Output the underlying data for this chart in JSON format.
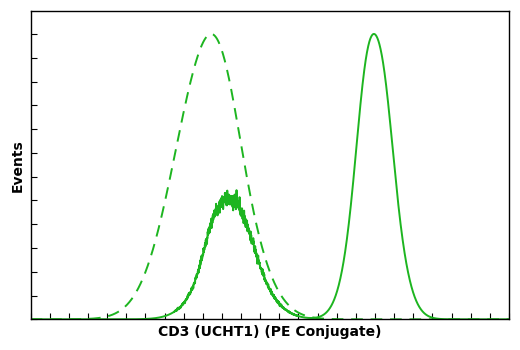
{
  "xlabel": "CD3 (UCHT1) (PE Conjugate)",
  "ylabel": "Events",
  "line_color": "#1db520",
  "background_color": "#ffffff",
  "xlim": [
    0,
    1000
  ],
  "ylim": [
    0,
    1.08
  ],
  "figsize": [
    5.2,
    3.5
  ],
  "dpi": 100
}
